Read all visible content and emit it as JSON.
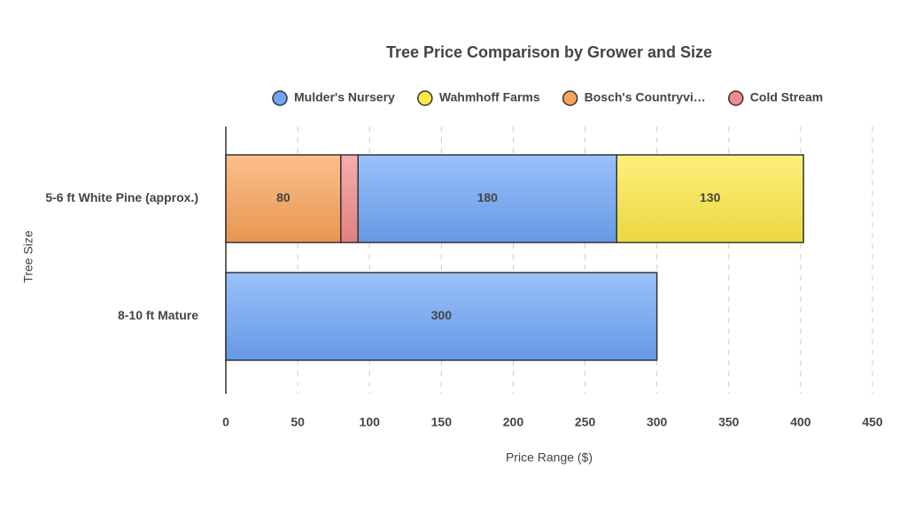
{
  "chart_data": {
    "type": "stacked_barh",
    "title": "Tree Price Comparison by Grower and Size",
    "x_label": "Price Range ($)",
    "y_label": "Tree Size",
    "categories": [
      "5-6 ft White Pine (approx.)",
      "8-10 ft Mature"
    ],
    "series": [
      {
        "name": "Mulder's Nursery",
        "color": "#6ea6f8",
        "values": [
          180,
          300
        ]
      },
      {
        "name": "Wahmhoff Farms",
        "color": "#ffea45",
        "values": [
          130,
          null
        ]
      },
      {
        "name": "Bosch's Countryvi…",
        "color": "#faa458",
        "values": [
          80,
          null
        ]
      },
      {
        "name": "Cold Stream",
        "color": "#f28b8b",
        "values": [
          12,
          null
        ]
      }
    ],
    "stack_order": [
      2,
      3,
      0,
      1
    ],
    "xlim": [
      0,
      450
    ],
    "xticks": [
      0,
      50,
      100,
      150,
      200,
      250,
      300,
      350,
      400,
      450
    ],
    "grid": true,
    "legend": "top"
  }
}
